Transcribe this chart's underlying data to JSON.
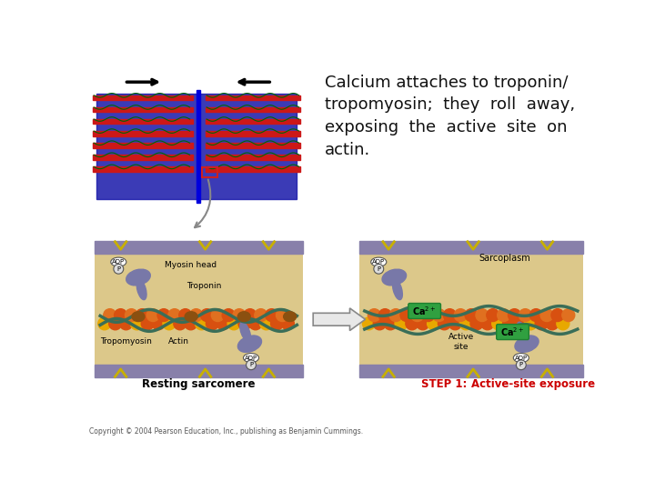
{
  "bg_color": "#ffffff",
  "text_line1": "Calcium attaches to troponin/",
  "text_line2": "tropomyosin;  they  roll  away,",
  "text_line3": "exposing  the  active  site  on",
  "text_line4": "actin.",
  "text_color": "#111111",
  "text_fontsize": 13.0,
  "copyright_text": "Copyright © 2004 Pearson Education, Inc., publishing as Benjamin Cummings.",
  "label_resting": "Resting sarcomere",
  "label_step1": "STEP 1: ",
  "label_step1b": "Active-site exposure",
  "sarcomere_bg": "#dcc88a",
  "purple_stripe": "#8880aa",
  "actin_orange": "#d85010",
  "actin_orange2": "#e07020",
  "actin_yellow": "#e8a800",
  "tropomyosin_green": "#3a6e58",
  "myosin_blue": "#7878a8",
  "adp_fill": "#e8e8e8",
  "ca_green_bg": "#30a040",
  "ca_green_border": "#208030",
  "arrow_fill": "#e8e8e8",
  "arrow_edge": "#888888",
  "troponin_brown": "#8B5010",
  "red_actin": "#cc1818",
  "blue_myosin": "#2020bb",
  "yellow_clip": "#c8b000"
}
